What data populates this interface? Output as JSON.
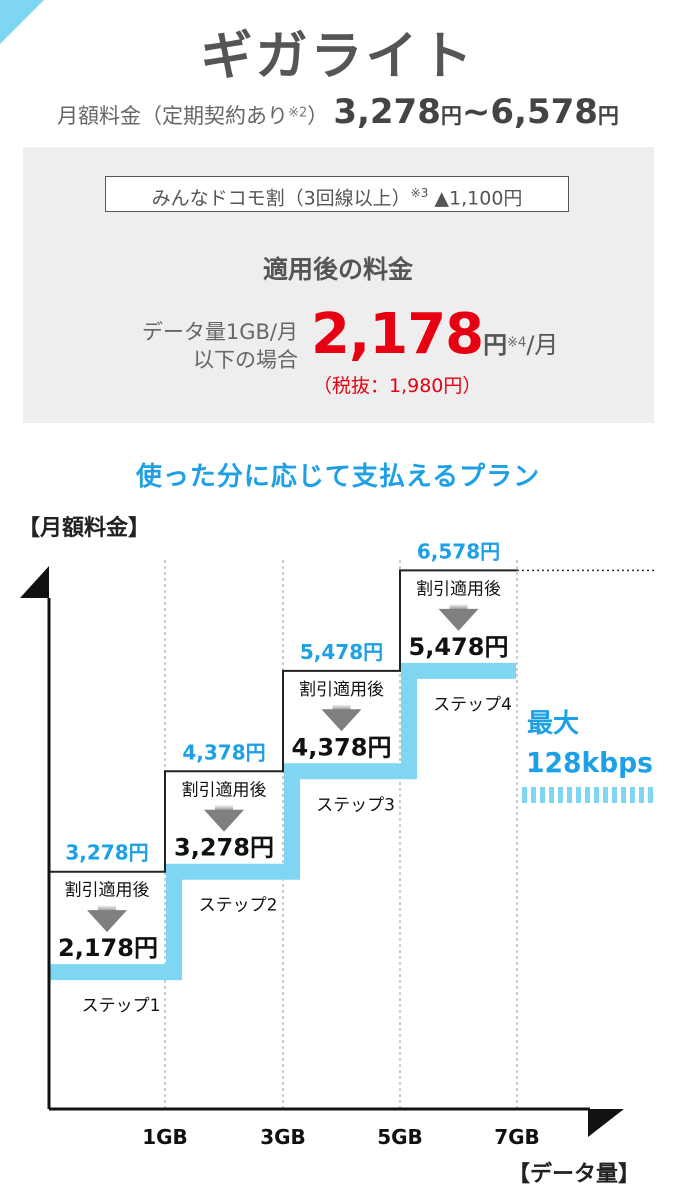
{
  "title": "ギガライト",
  "price_range": {
    "label": "月額料金（定期契約あり",
    "note": "※2",
    "label_close": "）",
    "min": "3,278",
    "yen": "円",
    "sep": "~",
    "max": "6,578"
  },
  "discount": {
    "label": "みんなドコモ割（3回線以上）",
    "note": "※3",
    "amount": "▲1,100円"
  },
  "after_discount": {
    "heading": "適用後の料金",
    "condition_line1": "データ量1GB/月",
    "condition_line2": "以下の場合",
    "price": "2,178",
    "yen": "円",
    "note": "※4",
    "per": "/月",
    "tax_excluded": "（税抜：1,980円）"
  },
  "subheading": "使った分に応じて支払えるプラン",
  "colors": {
    "accent_blue": "#1ea0e6",
    "step_cyan": "#7fd6f3",
    "discount_red": "#e60012"
  },
  "chart_data": {
    "type": "step",
    "ylabel": "【月額料金】",
    "xlabel": "【データ量】",
    "x_ticks": [
      "1GB",
      "3GB",
      "5GB",
      "7GB"
    ],
    "discount_label": "割引適用後",
    "steps": [
      {
        "name": "ステップ1",
        "regular_price": "3,278円",
        "discounted_price": "2,178円",
        "regular": 3278,
        "discounted": 2178
      },
      {
        "name": "ステップ2",
        "regular_price": "4,378円",
        "discounted_price": "3,278円",
        "regular": 4378,
        "discounted": 3278
      },
      {
        "name": "ステップ3",
        "regular_price": "5,478円",
        "discounted_price": "4,378円",
        "regular": 5478,
        "discounted": 4378
      },
      {
        "name": "ステップ4",
        "regular_price": "6,578円",
        "discounted_price": "5,478円",
        "regular": 6578,
        "discounted": 5478
      }
    ],
    "max_speed_line1": "最大",
    "max_speed_line2": "128kbps"
  }
}
